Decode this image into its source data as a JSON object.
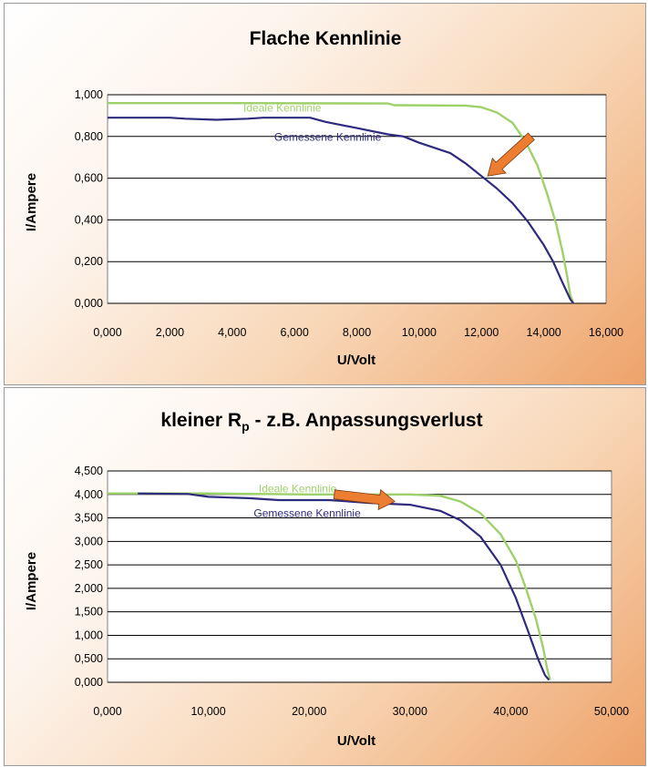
{
  "chart_data": [
    {
      "type": "line",
      "title": "Flache Kennlinie",
      "xlabel": "U/Volt",
      "ylabel": "I/Ampere",
      "xlim": [
        0,
        16000
      ],
      "ylim": [
        0,
        1
      ],
      "xticks": [
        "0,000",
        "2,000",
        "4,000",
        "6,000",
        "8,000",
        "10,000",
        "12,000",
        "14,000",
        "16,000"
      ],
      "yticks": [
        "0,000",
        "0,200",
        "0,400",
        "0,600",
        "0,800",
        "1,000"
      ],
      "grid": "horizontal",
      "series": [
        {
          "name": "Ideale Kennlinie",
          "color": "#9fd16b",
          "points": [
            [
              0,
              0.96
            ],
            [
              4000,
              0.96
            ],
            [
              9000,
              0.958
            ],
            [
              9200,
              0.95
            ],
            [
              11500,
              0.948
            ],
            [
              12000,
              0.94
            ],
            [
              12500,
              0.915
            ],
            [
              13000,
              0.865
            ],
            [
              13400,
              0.78
            ],
            [
              13800,
              0.66
            ],
            [
              14100,
              0.53
            ],
            [
              14400,
              0.38
            ],
            [
              14600,
              0.25
            ],
            [
              14750,
              0.13
            ],
            [
              14850,
              0.04
            ],
            [
              14950,
              0.0
            ]
          ]
        },
        {
          "name": "Gemessene Kennlinie",
          "color": "#2e2a7e",
          "points": [
            [
              0,
              0.89
            ],
            [
              2000,
              0.89
            ],
            [
              2500,
              0.885
            ],
            [
              3500,
              0.88
            ],
            [
              4500,
              0.885
            ],
            [
              5000,
              0.89
            ],
            [
              6500,
              0.89
            ],
            [
              7000,
              0.87
            ],
            [
              8000,
              0.84
            ],
            [
              9000,
              0.81
            ],
            [
              9500,
              0.8
            ],
            [
              10000,
              0.77
            ],
            [
              11000,
              0.72
            ],
            [
              11500,
              0.67
            ],
            [
              12000,
              0.61
            ],
            [
              12500,
              0.55
            ],
            [
              13000,
              0.48
            ],
            [
              13500,
              0.39
            ],
            [
              14000,
              0.28
            ],
            [
              14300,
              0.2
            ],
            [
              14600,
              0.1
            ],
            [
              14850,
              0.02
            ],
            [
              14950,
              0.0
            ]
          ]
        }
      ],
      "annotation": {
        "type": "arrow",
        "color": "#ed7d31",
        "from": [
          13600,
          0.8
        ],
        "to": [
          12200,
          0.61
        ]
      }
    },
    {
      "type": "line",
      "title_main": "kleiner R",
      "title_sub": "p",
      "title_rest": " - z.B. Anpassungsverlust",
      "xlabel": "U/Volt",
      "ylabel": "I/Ampere",
      "xlim": [
        0,
        50000
      ],
      "ylim": [
        0,
        4.5
      ],
      "xticks": [
        "0,000",
        "10,000",
        "20,000",
        "30,000",
        "40,000",
        "50,000"
      ],
      "yticks": [
        "0,000",
        "0,500",
        "1,000",
        "1,500",
        "2,000",
        "2,500",
        "3,000",
        "3,500",
        "4,000",
        "4,500"
      ],
      "grid": "horizontal",
      "series": [
        {
          "name": "Ideale Kennlinie",
          "color": "#9fd16b",
          "points": [
            [
              0,
              4.02
            ],
            [
              10000,
              4.02
            ],
            [
              20000,
              4.0
            ],
            [
              30000,
              4.0
            ],
            [
              33000,
              3.97
            ],
            [
              35000,
              3.85
            ],
            [
              37000,
              3.6
            ],
            [
              39000,
              3.15
            ],
            [
              40500,
              2.6
            ],
            [
              41500,
              2.0
            ],
            [
              42500,
              1.35
            ],
            [
              43200,
              0.75
            ],
            [
              43600,
              0.3
            ],
            [
              43900,
              0.05
            ]
          ]
        },
        {
          "name": "Gemessene Kennlinie",
          "color": "#2e2a7e",
          "points": [
            [
              3000,
              4.02
            ],
            [
              8000,
              4.01
            ],
            [
              10000,
              3.95
            ],
            [
              14000,
              3.92
            ],
            [
              17000,
              3.88
            ],
            [
              22000,
              3.88
            ],
            [
              26000,
              3.82
            ],
            [
              30000,
              3.78
            ],
            [
              33000,
              3.65
            ],
            [
              35000,
              3.45
            ],
            [
              37000,
              3.1
            ],
            [
              39000,
              2.5
            ],
            [
              40500,
              1.8
            ],
            [
              41700,
              1.1
            ],
            [
              42700,
              0.5
            ],
            [
              43400,
              0.15
            ],
            [
              43800,
              0.05
            ]
          ]
        }
      ],
      "annotation": {
        "type": "arrow",
        "color": "#ed7d31",
        "from": [
          22500,
          4.0
        ],
        "to": [
          28500,
          3.85
        ]
      }
    }
  ]
}
